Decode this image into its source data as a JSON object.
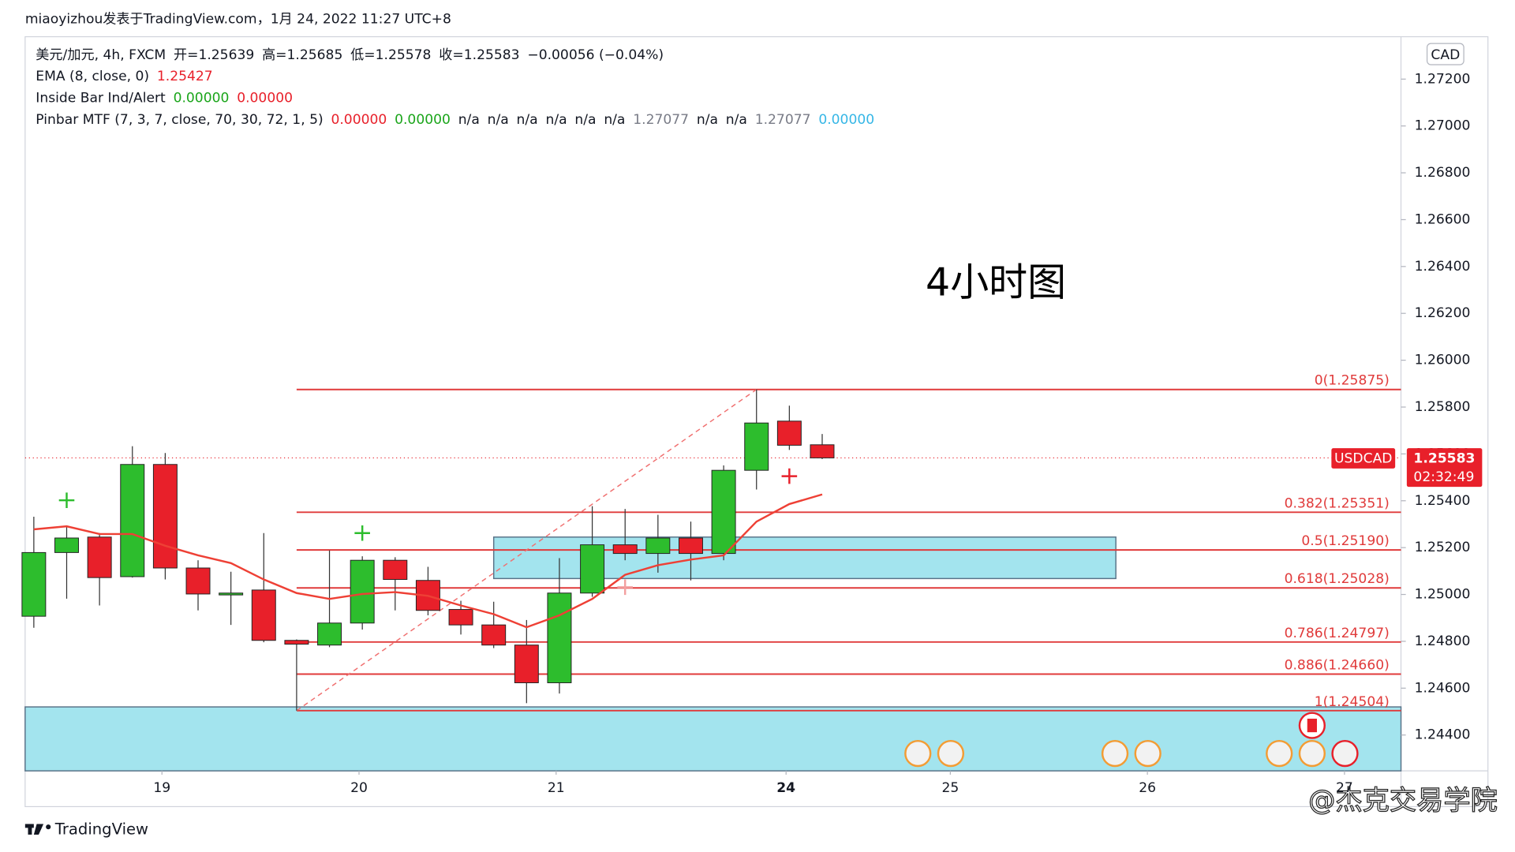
{
  "chart_data": {
    "type": "candlestick",
    "header": "miaoyizhou发表于TradingView.com，1月 24, 2022 11:27 UTC+8",
    "legend": [
      [
        {
          "text": "美元/加元, 4h, FXCM",
          "color": "#131722"
        },
        {
          "text": "开=1.25639",
          "color": "#131722"
        },
        {
          "text": "高=1.25685",
          "color": "#131722"
        },
        {
          "text": "低=1.25578",
          "color": "#131722"
        },
        {
          "text": "收=1.25583",
          "color": "#131722"
        },
        {
          "text": "−0.00056 (−0.04%)",
          "color": "#131722"
        }
      ],
      [
        {
          "text": "EMA (8, close, 0)",
          "color": "#131722"
        },
        {
          "text": "1.25427",
          "color": "#e8202a"
        }
      ],
      [
        {
          "text": "Inside Bar Ind/Alert",
          "color": "#131722"
        },
        {
          "text": "0.00000",
          "color": "#1aa51a"
        },
        {
          "text": "0.00000",
          "color": "#e8202a"
        }
      ],
      [
        {
          "text": "Pinbar MTF (7, 3, 7, close, 70, 30, 72, 1, 5)",
          "color": "#131722"
        },
        {
          "text": "0.00000",
          "color": "#e8202a"
        },
        {
          "text": "0.00000",
          "color": "#1aa51a"
        },
        {
          "text": "n/a",
          "color": "#131722"
        },
        {
          "text": "n/a",
          "color": "#131722"
        },
        {
          "text": "n/a",
          "color": "#131722"
        },
        {
          "text": "n/a",
          "color": "#131722"
        },
        {
          "text": "n/a",
          "color": "#131722"
        },
        {
          "text": "n/a",
          "color": "#131722"
        },
        {
          "text": "1.27077",
          "color": "#787b86"
        },
        {
          "text": "n/a",
          "color": "#131722"
        },
        {
          "text": "n/a",
          "color": "#131722"
        },
        {
          "text": "1.27077",
          "color": "#787b86"
        },
        {
          "text": "0.00000",
          "color": "#35b6e6"
        }
      ]
    ],
    "annotation": "4小时图",
    "currency": "CAD",
    "brand": "TradingView",
    "watermark": "@杰克交易学院",
    "xlim": [
      -0.265,
      41.62
    ],
    "ylim": [
      1.24247,
      1.27381
    ],
    "xticks": [
      {
        "value": 3.9,
        "label": "19"
      },
      {
        "value": 9.9,
        "label": "20"
      },
      {
        "value": 15.9,
        "label": "21"
      },
      {
        "value": 22.9,
        "label": "24"
      },
      {
        "value": 27.9,
        "label": "25"
      },
      {
        "value": 33.9,
        "label": "26"
      },
      {
        "value": 39.9,
        "label": "27"
      }
    ],
    "yticks": [
      {
        "value": 1.244,
        "label": "1.24400"
      },
      {
        "value": 1.246,
        "label": "1.24600"
      },
      {
        "value": 1.248,
        "label": "1.24800"
      },
      {
        "value": 1.25,
        "label": "1.25000"
      },
      {
        "value": 1.252,
        "label": "1.25200"
      },
      {
        "value": 1.254,
        "label": "1.25400"
      },
      {
        "value": 1.256,
        "label": "1.25600"
      },
      {
        "value": 1.258,
        "label": "1.25800"
      },
      {
        "value": 1.26,
        "label": "1.26000"
      },
      {
        "value": 1.262,
        "label": "1.26200"
      },
      {
        "value": 1.264,
        "label": "1.26400"
      },
      {
        "value": 1.266,
        "label": "1.26600"
      },
      {
        "value": 1.268,
        "label": "1.26800"
      },
      {
        "value": 1.27,
        "label": "1.27000"
      },
      {
        "value": 1.272,
        "label": "1.27200"
      }
    ],
    "up_color": "#2dbd2d",
    "down_color": "#e8202a",
    "x": [
      0,
      1,
      2,
      3,
      4,
      5,
      6,
      7,
      8,
      9,
      10,
      11,
      12,
      13,
      14,
      15,
      16,
      17,
      18,
      19,
      20,
      21,
      22,
      23,
      24
    ],
    "open": [
      1.24907,
      1.25179,
      1.25245,
      1.25076,
      1.25555,
      1.25113,
      1.24998,
      1.25019,
      1.24804,
      1.24784,
      1.24878,
      1.25146,
      1.2506,
      1.24936,
      1.2487,
      1.24784,
      1.24623,
      1.25006,
      1.25212,
      1.25175,
      1.25241,
      1.25175,
      1.2553,
      1.2574,
      1.25639
    ],
    "high": [
      1.25332,
      1.25291,
      1.25262,
      1.25633,
      1.25604,
      1.25146,
      1.25097,
      1.25262,
      1.24808,
      1.25188,
      1.25163,
      1.25159,
      1.25118,
      1.24973,
      1.24969,
      1.24891,
      1.25155,
      1.25377,
      1.25365,
      1.2534,
      1.25311,
      1.25551,
      1.25875,
      1.25806,
      1.25685
    ],
    "low": [
      1.24858,
      1.24982,
      1.24953,
      1.25072,
      1.25064,
      1.24932,
      1.2487,
      1.24796,
      1.24504,
      1.24775,
      1.2485,
      1.24932,
      1.24911,
      1.24829,
      1.24771,
      1.24536,
      1.24577,
      1.2499,
      1.25146,
      1.25093,
      1.2506,
      1.25146,
      1.25448,
      1.25617,
      1.25578
    ],
    "close": [
      1.25179,
      1.25241,
      1.25072,
      1.25555,
      1.25113,
      1.25002,
      1.25006,
      1.24804,
      1.24788,
      1.24878,
      1.25146,
      1.25064,
      1.24932,
      1.2487,
      1.24784,
      1.24623,
      1.25006,
      1.25212,
      1.25175,
      1.25241,
      1.25175,
      1.2553,
      1.25732,
      1.25637,
      1.25583
    ],
    "ema": {
      "color": "#ee4035",
      "values": [
        1.25278,
        1.25291,
        1.25258,
        1.25258,
        1.25208,
        1.25167,
        1.25134,
        1.25064,
        1.25006,
        1.24981,
        1.25002,
        1.2501,
        1.24994,
        1.24953,
        1.24916,
        1.2486,
        1.24911,
        1.24981,
        1.25084,
        1.25125,
        1.25149,
        1.25167,
        1.25311,
        1.25386,
        1.25427
      ]
    },
    "fib": {
      "color": "#e03a3a",
      "x0": 8,
      "levels": [
        {
          "value": 1.25875,
          "label": "0(1.25875)"
        },
        {
          "value": 1.25351,
          "label": "0.382(1.25351)"
        },
        {
          "value": 1.2519,
          "label": "0.5(1.25190)"
        },
        {
          "value": 1.25028,
          "label": "0.618(1.25028)"
        },
        {
          "value": 1.24797,
          "label": "0.786(1.24797)"
        },
        {
          "value": 1.2466,
          "label": "0.886(1.24660)"
        },
        {
          "value": 1.24504,
          "label": "1(1.24504)"
        }
      ]
    },
    "trend_line": {
      "x": [
        8,
        22
      ],
      "y": [
        1.24504,
        1.25875
      ]
    },
    "zones": [
      {
        "x0": 14,
        "x1": 32.94,
        "top": 1.25245,
        "bottom": 1.25068
      },
      {
        "x0": -0.265,
        "x1": 41.62,
        "top": 1.2452,
        "bottom": 1.24247
      }
    ],
    "markers": [
      {
        "x": 1,
        "y": 1.25402,
        "color": "#2dbd2d"
      },
      {
        "x": 10,
        "y": 1.25262,
        "color": "#2dbd2d"
      },
      {
        "x": 23,
        "y": 1.25505,
        "color": "#e8202a"
      },
      {
        "x": 18,
        "y": 1.25031,
        "color": "#f3a0a0"
      }
    ],
    "price_label": {
      "symbol": "USDCAD",
      "value": 1.25583,
      "countdown": "02:32:49",
      "color": "#e8202a"
    }
  }
}
